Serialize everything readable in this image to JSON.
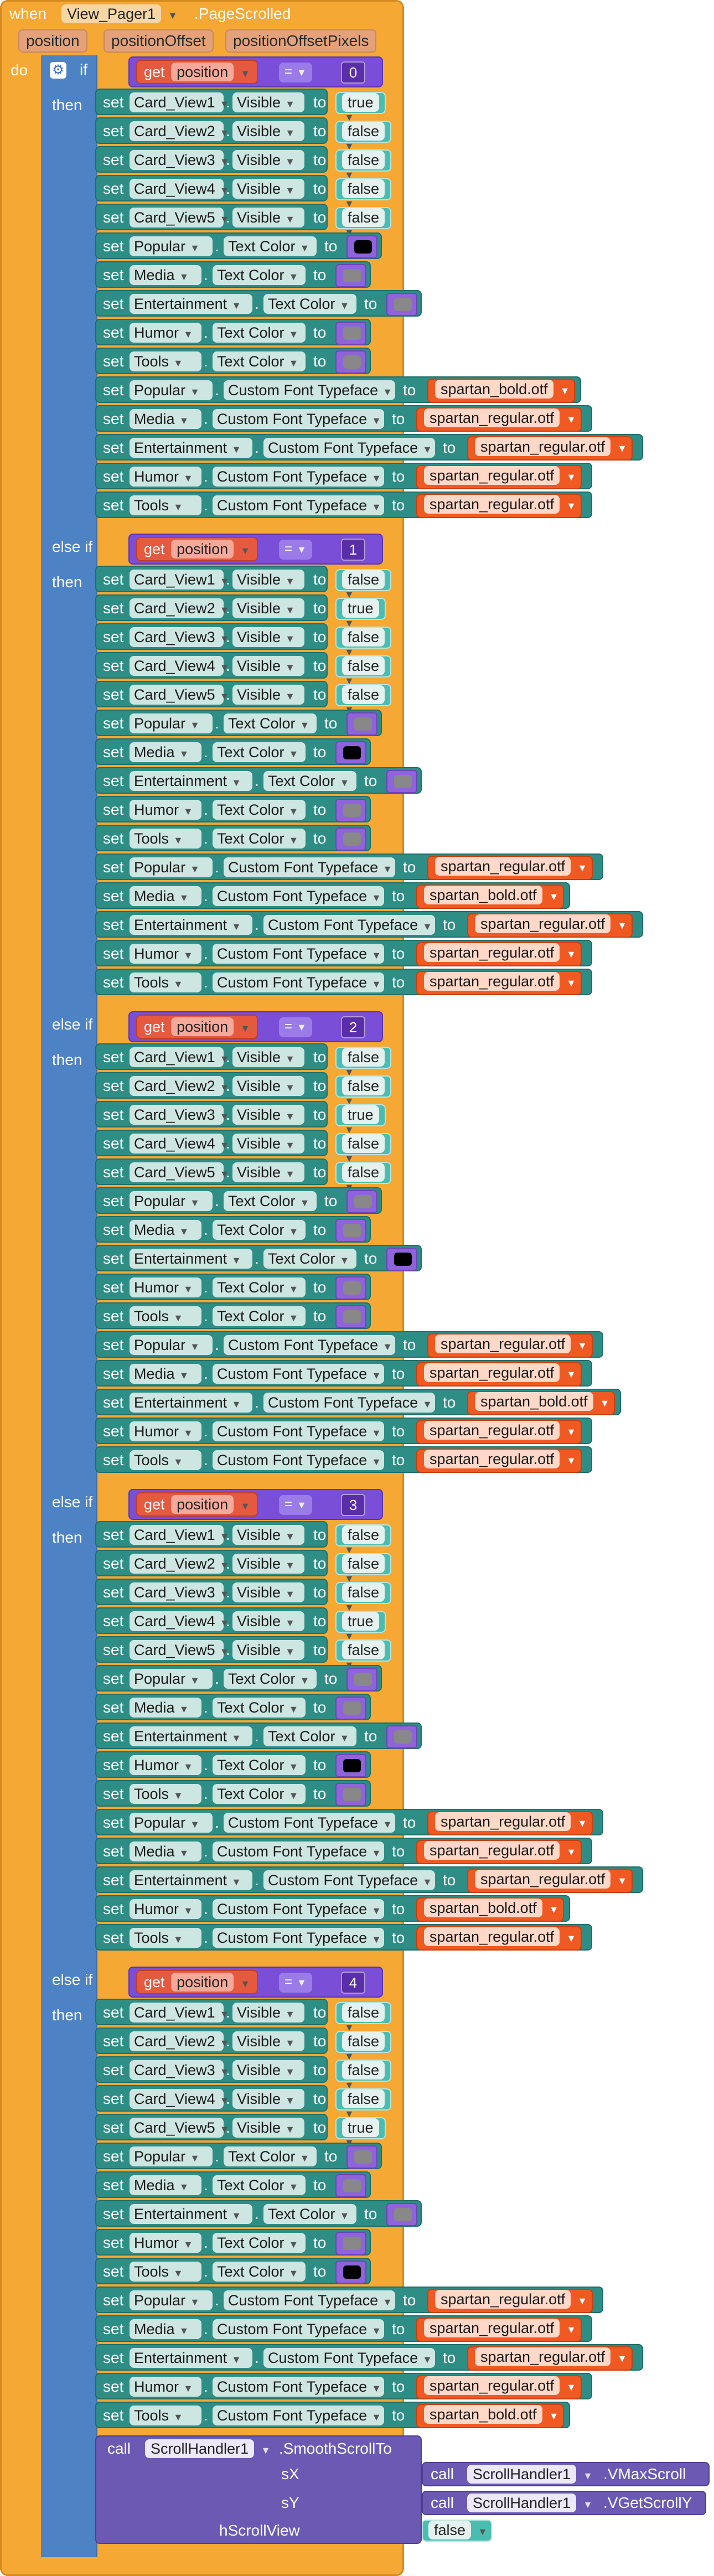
{
  "event": {
    "when_label": "when",
    "component": "View_Pager1",
    "event_name": ".PageScrolled",
    "params": [
      "position",
      "positionOffset",
      "positionOffsetPixels"
    ],
    "do_label": "do"
  },
  "keywords": {
    "if": "if",
    "else_if": "else if",
    "then": "then",
    "set": "set",
    "to": "to",
    "get": "get",
    "call": "call",
    "eq": "=",
    "dot": "."
  },
  "colors": {
    "black": "#000000",
    "gray": "#888888"
  },
  "branches": [
    {
      "keyword": "if",
      "get_var": "position",
      "compare": "0",
      "rows": [
        {
          "comp": "Card_View1",
          "prop": "Visible",
          "type": "bool",
          "value": "true"
        },
        {
          "comp": "Card_View2",
          "prop": "Visible",
          "type": "bool",
          "value": "false"
        },
        {
          "comp": "Card_View3",
          "prop": "Visible",
          "type": "bool",
          "value": "false"
        },
        {
          "comp": "Card_View4",
          "prop": "Visible",
          "type": "bool",
          "value": "false"
        },
        {
          "comp": "Card_View5",
          "prop": "Visible",
          "type": "bool",
          "value": "false"
        },
        {
          "comp": "Popular",
          "prop": "Text Color",
          "type": "color",
          "value": "black"
        },
        {
          "comp": "Media",
          "prop": "Text Color",
          "type": "color",
          "value": "gray"
        },
        {
          "comp": "Entertainment",
          "prop": "Text Color",
          "type": "color",
          "value": "gray"
        },
        {
          "comp": "Humor",
          "prop": "Text Color",
          "type": "color",
          "value": "gray"
        },
        {
          "comp": "Tools",
          "prop": "Text Color",
          "type": "color",
          "value": "gray"
        },
        {
          "comp": "Popular",
          "prop": "Custom Font Typeface",
          "type": "text",
          "value": "spartan_bold.otf"
        },
        {
          "comp": "Media",
          "prop": "Custom Font Typeface",
          "type": "text",
          "value": "spartan_regular.otf"
        },
        {
          "comp": "Entertainment",
          "prop": "Custom Font Typeface",
          "type": "text",
          "value": "spartan_regular.otf"
        },
        {
          "comp": "Humor",
          "prop": "Custom Font Typeface",
          "type": "text",
          "value": "spartan_regular.otf"
        },
        {
          "comp": "Tools",
          "prop": "Custom Font Typeface",
          "type": "text",
          "value": "spartan_regular.otf"
        }
      ]
    },
    {
      "keyword": "else if",
      "get_var": "position",
      "compare": "1",
      "rows": [
        {
          "comp": "Card_View1",
          "prop": "Visible",
          "type": "bool",
          "value": "false"
        },
        {
          "comp": "Card_View2",
          "prop": "Visible",
          "type": "bool",
          "value": "true"
        },
        {
          "comp": "Card_View3",
          "prop": "Visible",
          "type": "bool",
          "value": "false"
        },
        {
          "comp": "Card_View4",
          "prop": "Visible",
          "type": "bool",
          "value": "false"
        },
        {
          "comp": "Card_View5",
          "prop": "Visible",
          "type": "bool",
          "value": "false"
        },
        {
          "comp": "Popular",
          "prop": "Text Color",
          "type": "color",
          "value": "gray"
        },
        {
          "comp": "Media",
          "prop": "Text Color",
          "type": "color",
          "value": "black"
        },
        {
          "comp": "Entertainment",
          "prop": "Text Color",
          "type": "color",
          "value": "gray"
        },
        {
          "comp": "Humor",
          "prop": "Text Color",
          "type": "color",
          "value": "gray"
        },
        {
          "comp": "Tools",
          "prop": "Text Color",
          "type": "color",
          "value": "gray"
        },
        {
          "comp": "Popular",
          "prop": "Custom Font Typeface",
          "type": "text",
          "value": "spartan_regular.otf"
        },
        {
          "comp": "Media",
          "prop": "Custom Font Typeface",
          "type": "text",
          "value": "spartan_bold.otf"
        },
        {
          "comp": "Entertainment",
          "prop": "Custom Font Typeface",
          "type": "text",
          "value": "spartan_regular.otf"
        },
        {
          "comp": "Humor",
          "prop": "Custom Font Typeface",
          "type": "text",
          "value": "spartan_regular.otf"
        },
        {
          "comp": "Tools",
          "prop": "Custom Font Typeface",
          "type": "text",
          "value": "spartan_regular.otf"
        }
      ]
    },
    {
      "keyword": "else if",
      "get_var": "position",
      "compare": "2",
      "rows": [
        {
          "comp": "Card_View1",
          "prop": "Visible",
          "type": "bool",
          "value": "false"
        },
        {
          "comp": "Card_View2",
          "prop": "Visible",
          "type": "bool",
          "value": "false"
        },
        {
          "comp": "Card_View3",
          "prop": "Visible",
          "type": "bool",
          "value": "true"
        },
        {
          "comp": "Card_View4",
          "prop": "Visible",
          "type": "bool",
          "value": "false"
        },
        {
          "comp": "Card_View5",
          "prop": "Visible",
          "type": "bool",
          "value": "false"
        },
        {
          "comp": "Popular",
          "prop": "Text Color",
          "type": "color",
          "value": "gray"
        },
        {
          "comp": "Media",
          "prop": "Text Color",
          "type": "color",
          "value": "gray"
        },
        {
          "comp": "Entertainment",
          "prop": "Text Color",
          "type": "color",
          "value": "black"
        },
        {
          "comp": "Humor",
          "prop": "Text Color",
          "type": "color",
          "value": "gray"
        },
        {
          "comp": "Tools",
          "prop": "Text Color",
          "type": "color",
          "value": "gray"
        },
        {
          "comp": "Popular",
          "prop": "Custom Font Typeface",
          "type": "text",
          "value": "spartan_regular.otf"
        },
        {
          "comp": "Media",
          "prop": "Custom Font Typeface",
          "type": "text",
          "value": "spartan_regular.otf"
        },
        {
          "comp": "Entertainment",
          "prop": "Custom Font Typeface",
          "type": "text",
          "value": "spartan_bold.otf"
        },
        {
          "comp": "Humor",
          "prop": "Custom Font Typeface",
          "type": "text",
          "value": "spartan_regular.otf"
        },
        {
          "comp": "Tools",
          "prop": "Custom Font Typeface",
          "type": "text",
          "value": "spartan_regular.otf"
        }
      ]
    },
    {
      "keyword": "else if",
      "get_var": "position",
      "compare": "3",
      "rows": [
        {
          "comp": "Card_View1",
          "prop": "Visible",
          "type": "bool",
          "value": "false"
        },
        {
          "comp": "Card_View2",
          "prop": "Visible",
          "type": "bool",
          "value": "false"
        },
        {
          "comp": "Card_View3",
          "prop": "Visible",
          "type": "bool",
          "value": "false"
        },
        {
          "comp": "Card_View4",
          "prop": "Visible",
          "type": "bool",
          "value": "true"
        },
        {
          "comp": "Card_View5",
          "prop": "Visible",
          "type": "bool",
          "value": "false"
        },
        {
          "comp": "Popular",
          "prop": "Text Color",
          "type": "color",
          "value": "gray"
        },
        {
          "comp": "Media",
          "prop": "Text Color",
          "type": "color",
          "value": "gray"
        },
        {
          "comp": "Entertainment",
          "prop": "Text Color",
          "type": "color",
          "value": "gray"
        },
        {
          "comp": "Humor",
          "prop": "Text Color",
          "type": "color",
          "value": "black"
        },
        {
          "comp": "Tools",
          "prop": "Text Color",
          "type": "color",
          "value": "gray"
        },
        {
          "comp": "Popular",
          "prop": "Custom Font Typeface",
          "type": "text",
          "value": "spartan_regular.otf"
        },
        {
          "comp": "Media",
          "prop": "Custom Font Typeface",
          "type": "text",
          "value": "spartan_regular.otf"
        },
        {
          "comp": "Entertainment",
          "prop": "Custom Font Typeface",
          "type": "text",
          "value": "spartan_regular.otf"
        },
        {
          "comp": "Humor",
          "prop": "Custom Font Typeface",
          "type": "text",
          "value": "spartan_bold.otf"
        },
        {
          "comp": "Tools",
          "prop": "Custom Font Typeface",
          "type": "text",
          "value": "spartan_regular.otf"
        }
      ]
    },
    {
      "keyword": "else if",
      "get_var": "position",
      "compare": "4",
      "rows": [
        {
          "comp": "Card_View1",
          "prop": "Visible",
          "type": "bool",
          "value": "false"
        },
        {
          "comp": "Card_View2",
          "prop": "Visible",
          "type": "bool",
          "value": "false"
        },
        {
          "comp": "Card_View3",
          "prop": "Visible",
          "type": "bool",
          "value": "false"
        },
        {
          "comp": "Card_View4",
          "prop": "Visible",
          "type": "bool",
          "value": "false"
        },
        {
          "comp": "Card_View5",
          "prop": "Visible",
          "type": "bool",
          "value": "true"
        },
        {
          "comp": "Popular",
          "prop": "Text Color",
          "type": "color",
          "value": "gray"
        },
        {
          "comp": "Media",
          "prop": "Text Color",
          "type": "color",
          "value": "gray"
        },
        {
          "comp": "Entertainment",
          "prop": "Text Color",
          "type": "color",
          "value": "gray"
        },
        {
          "comp": "Humor",
          "prop": "Text Color",
          "type": "color",
          "value": "gray"
        },
        {
          "comp": "Tools",
          "prop": "Text Color",
          "type": "color",
          "value": "black"
        },
        {
          "comp": "Popular",
          "prop": "Custom Font Typeface",
          "type": "text",
          "value": "spartan_regular.otf"
        },
        {
          "comp": "Media",
          "prop": "Custom Font Typeface",
          "type": "text",
          "value": "spartan_regular.otf"
        },
        {
          "comp": "Entertainment",
          "prop": "Custom Font Typeface",
          "type": "text",
          "value": "spartan_regular.otf"
        },
        {
          "comp": "Humor",
          "prop": "Custom Font Typeface",
          "type": "text",
          "value": "spartan_regular.otf"
        },
        {
          "comp": "Tools",
          "prop": "Custom Font Typeface",
          "type": "text",
          "value": "spartan_bold.otf"
        }
      ]
    }
  ],
  "call_block": {
    "component": "ScrollHandler1",
    "method": ".SmoothScrollTo",
    "args": [
      {
        "label": "sX",
        "type": "call",
        "component": "ScrollHandler1",
        "method": ".VMaxScroll"
      },
      {
        "label": "sY",
        "type": "call",
        "component": "ScrollHandler1",
        "method": ".VGetScrollY"
      },
      {
        "label": "hScrollView",
        "type": "bool",
        "value": "false"
      }
    ]
  }
}
